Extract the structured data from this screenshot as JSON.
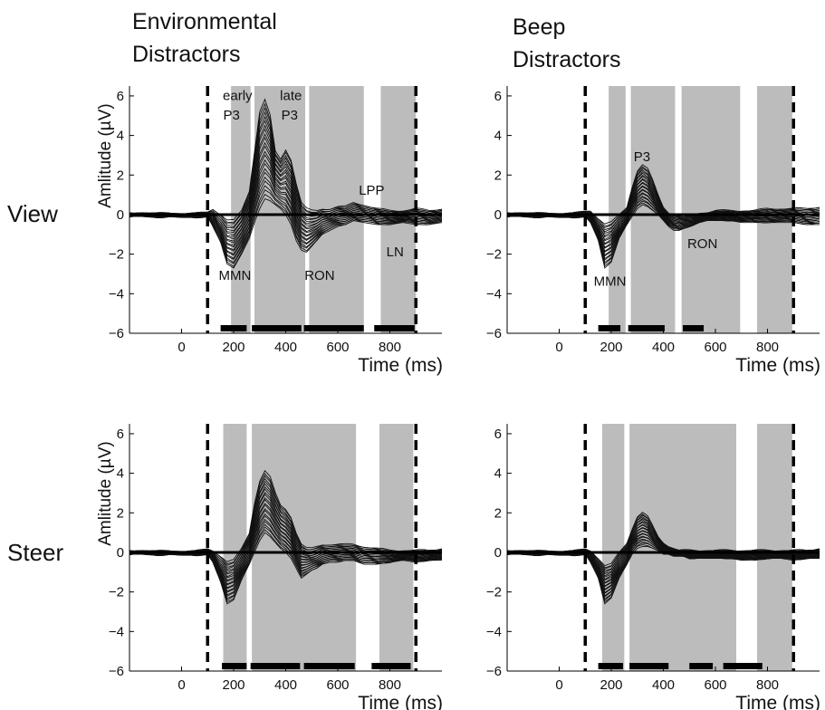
{
  "columns": [
    {
      "title_line1": "Environmental",
      "title_line2": "Distractors"
    },
    {
      "title_line1": "Beep",
      "title_line2": "Distractors"
    }
  ],
  "rows": [
    "View",
    "Steer"
  ],
  "chart_data": [
    {
      "type": "line",
      "panel": "View - Environmental Distractors",
      "xlabel": "Time (ms)",
      "ylabel": "Amlitude (µV)",
      "xlim": [
        -200,
        1000
      ],
      "ylim": [
        -6,
        6.5
      ],
      "xticks": [
        0,
        200,
        400,
        600,
        800
      ],
      "yticks": [
        -6,
        -4,
        -2,
        0,
        2,
        4,
        6
      ],
      "stimulus_markers": [
        100,
        900
      ],
      "shaded_windows": [
        [
          190,
          265
        ],
        [
          280,
          475
        ],
        [
          490,
          700
        ],
        [
          765,
          900
        ]
      ],
      "significance_bars": [
        [
          150,
          250
        ],
        [
          270,
          460
        ],
        [
          470,
          700
        ],
        [
          740,
          895
        ]
      ],
      "envelope": {
        "x": [
          -200,
          -150,
          -100,
          -50,
          0,
          50,
          100,
          120,
          150,
          175,
          200,
          230,
          260,
          280,
          300,
          320,
          340,
          360,
          380,
          400,
          420,
          440,
          460,
          480,
          500,
          520,
          540,
          570,
          600,
          630,
          660,
          700,
          750,
          800,
          850,
          900,
          950,
          1000
        ],
        "upper": [
          0.1,
          0.1,
          0.05,
          0.1,
          0.05,
          0.05,
          0.15,
          0.3,
          0.0,
          -0.3,
          -0.3,
          0.2,
          1.2,
          3.2,
          5.2,
          5.8,
          5.0,
          3.2,
          2.8,
          3.3,
          2.8,
          1.6,
          0.6,
          0.3,
          0.2,
          0.2,
          0.3,
          0.3,
          0.4,
          0.4,
          0.6,
          0.5,
          0.3,
          0.2,
          0.2,
          0.3,
          0.2,
          0.3
        ],
        "lower": [
          -0.1,
          -0.1,
          -0.15,
          -0.1,
          -0.15,
          -0.15,
          -0.1,
          -0.6,
          -1.4,
          -2.5,
          -2.7,
          -2.0,
          -1.2,
          -0.4,
          0.3,
          0.8,
          0.7,
          0.5,
          0.3,
          0.0,
          -0.5,
          -1.3,
          -1.8,
          -1.9,
          -1.6,
          -1.3,
          -1.0,
          -0.8,
          -0.6,
          -0.5,
          -0.3,
          -0.4,
          -0.5,
          -0.5,
          -0.4,
          -0.5,
          -0.5,
          -0.4
        ]
      },
      "annotations": [
        {
          "text": "early",
          "x": 215,
          "y": 5.8
        },
        {
          "text": "P3",
          "x": 192,
          "y": 4.8
        },
        {
          "text": "late",
          "x": 420,
          "y": 5.8
        },
        {
          "text": "P3",
          "x": 415,
          "y": 4.8
        },
        {
          "text": "LPP",
          "x": 730,
          "y": 1.0
        },
        {
          "text": "MMN",
          "x": 205,
          "y": -3.3
        },
        {
          "text": "RON",
          "x": 530,
          "y": -3.3
        },
        {
          "text": "LN",
          "x": 820,
          "y": -2.1
        }
      ]
    },
    {
      "type": "line",
      "panel": "View - Beep Distractors",
      "xlabel": "Time (ms)",
      "ylabel": "",
      "xlim": [
        -200,
        1000
      ],
      "ylim": [
        -6,
        6.5
      ],
      "xticks": [
        0,
        200,
        400,
        600,
        800
      ],
      "yticks": [
        -6,
        -4,
        -2,
        0,
        2,
        4,
        6
      ],
      "stimulus_markers": [
        100,
        900
      ],
      "shaded_windows": [
        [
          190,
          255
        ],
        [
          275,
          445
        ],
        [
          470,
          695
        ],
        [
          760,
          895
        ]
      ],
      "significance_bars": [
        [
          150,
          235
        ],
        [
          265,
          405
        ],
        [
          475,
          555
        ]
      ],
      "envelope": {
        "x": [
          -200,
          -150,
          -100,
          -50,
          0,
          50,
          100,
          120,
          150,
          175,
          200,
          230,
          260,
          280,
          300,
          320,
          340,
          360,
          380,
          400,
          420,
          440,
          460,
          480,
          500,
          520,
          540,
          570,
          600,
          630,
          660,
          700,
          750,
          800,
          850,
          900,
          950,
          1000
        ],
        "upper": [
          0.1,
          0.1,
          0.05,
          0.1,
          0.05,
          0.05,
          0.2,
          0.2,
          -0.2,
          -0.5,
          -0.4,
          0.0,
          0.4,
          1.4,
          2.2,
          2.5,
          2.3,
          1.7,
          1.0,
          0.4,
          0.1,
          0.0,
          -0.1,
          -0.1,
          0.0,
          0.0,
          0.1,
          0.1,
          0.2,
          0.2,
          0.2,
          0.2,
          0.2,
          0.3,
          0.3,
          0.3,
          0.3,
          0.4
        ],
        "lower": [
          -0.1,
          -0.1,
          -0.15,
          -0.1,
          -0.15,
          -0.15,
          -0.1,
          -0.4,
          -1.3,
          -2.7,
          -2.4,
          -1.2,
          -0.5,
          -0.1,
          0.3,
          0.5,
          0.4,
          0.2,
          0.0,
          -0.3,
          -0.6,
          -0.8,
          -0.8,
          -0.7,
          -0.6,
          -0.5,
          -0.4,
          -0.3,
          -0.3,
          -0.3,
          -0.3,
          -0.4,
          -0.4,
          -0.4,
          -0.4,
          -0.4,
          -0.5,
          -0.5
        ]
      },
      "annotations": [
        {
          "text": "P3",
          "x": 318,
          "y": 2.7
        },
        {
          "text": "MMN",
          "x": 195,
          "y": -3.6
        },
        {
          "text": "RON",
          "x": 550,
          "y": -1.7
        }
      ]
    },
    {
      "type": "line",
      "panel": "Steer - Environmental Distractors",
      "xlabel": "Time (ms)",
      "ylabel": "Amlitude (µV)",
      "xlim": [
        -200,
        1000
      ],
      "ylim": [
        -6,
        6.5
      ],
      "xticks": [
        0,
        200,
        400,
        600,
        800
      ],
      "yticks": [
        -6,
        -4,
        -2,
        0,
        2,
        4,
        6
      ],
      "stimulus_markers": [
        100,
        900
      ],
      "shaded_windows": [
        [
          160,
          250
        ],
        [
          270,
          670
        ],
        [
          760,
          890
        ]
      ],
      "significance_bars": [
        [
          155,
          250
        ],
        [
          265,
          455
        ],
        [
          470,
          665
        ],
        [
          730,
          880
        ]
      ],
      "envelope": {
        "x": [
          -200,
          -150,
          -100,
          -50,
          0,
          50,
          100,
          120,
          150,
          175,
          200,
          230,
          260,
          280,
          300,
          320,
          340,
          360,
          380,
          400,
          420,
          440,
          460,
          480,
          500,
          520,
          540,
          570,
          600,
          630,
          660,
          700,
          750,
          800,
          850,
          900,
          950,
          1000
        ],
        "upper": [
          0.1,
          0.1,
          0.05,
          0.1,
          0.05,
          0.05,
          0.2,
          0.1,
          -0.2,
          -0.5,
          -0.4,
          0.2,
          1.0,
          2.5,
          3.6,
          4.1,
          3.8,
          3.0,
          2.4,
          2.2,
          1.8,
          1.0,
          0.4,
          0.2,
          0.2,
          0.3,
          0.4,
          0.4,
          0.4,
          0.4,
          0.4,
          0.3,
          0.2,
          0.1,
          0.1,
          0.1,
          0.1,
          0.2
        ],
        "lower": [
          -0.1,
          -0.1,
          -0.15,
          -0.1,
          -0.15,
          -0.15,
          -0.1,
          -0.5,
          -1.5,
          -2.6,
          -2.4,
          -1.4,
          -0.6,
          0.0,
          0.6,
          1.0,
          0.8,
          0.5,
          0.2,
          0.0,
          -0.3,
          -0.8,
          -1.3,
          -1.1,
          -0.9,
          -0.8,
          -0.6,
          -0.5,
          -0.5,
          -0.4,
          -0.4,
          -0.6,
          -0.6,
          -0.5,
          -0.4,
          -0.5,
          -0.4,
          -0.4
        ]
      },
      "annotations": []
    },
    {
      "type": "line",
      "panel": "Steer - Beep Distractors",
      "xlabel": "Time (ms)",
      "ylabel": "",
      "xlim": [
        -200,
        1000
      ],
      "ylim": [
        -6,
        6.5
      ],
      "xticks": [
        0,
        200,
        400,
        600,
        800
      ],
      "yticks": [
        -6,
        -4,
        -2,
        0,
        2,
        4,
        6
      ],
      "stimulus_markers": [
        100,
        900
      ],
      "shaded_windows": [
        [
          165,
          250
        ],
        [
          270,
          680
        ],
        [
          760,
          895
        ]
      ],
      "significance_bars": [
        [
          150,
          245
        ],
        [
          270,
          420
        ],
        [
          500,
          590
        ],
        [
          630,
          780
        ]
      ],
      "envelope": {
        "x": [
          -200,
          -150,
          -100,
          -50,
          0,
          50,
          100,
          120,
          150,
          175,
          200,
          230,
          260,
          280,
          300,
          320,
          340,
          360,
          380,
          400,
          420,
          440,
          460,
          480,
          500,
          520,
          540,
          570,
          600,
          630,
          660,
          700,
          750,
          800,
          850,
          900,
          950,
          1000
        ],
        "upper": [
          0.1,
          0.1,
          0.05,
          0.1,
          0.05,
          0.05,
          0.2,
          0.1,
          -0.3,
          -0.7,
          -0.6,
          0.0,
          0.5,
          1.2,
          1.8,
          2.0,
          1.8,
          1.3,
          0.8,
          0.5,
          0.3,
          0.2,
          0.1,
          0.1,
          0.1,
          0.1,
          0.1,
          0.1,
          0.1,
          0.1,
          0.1,
          0.1,
          0.1,
          0.1,
          0.1,
          0.1,
          0.1,
          0.2
        ],
        "lower": [
          -0.1,
          -0.1,
          -0.15,
          -0.1,
          -0.15,
          -0.15,
          -0.1,
          -0.5,
          -1.3,
          -2.6,
          -2.3,
          -1.3,
          -0.6,
          -0.1,
          0.2,
          0.3,
          0.3,
          0.2,
          0.1,
          -0.1,
          -0.1,
          -0.2,
          -0.2,
          -0.2,
          -0.3,
          -0.3,
          -0.3,
          -0.3,
          -0.3,
          -0.3,
          -0.3,
          -0.4,
          -0.4,
          -0.3,
          -0.3,
          -0.4,
          -0.3,
          -0.3
        ]
      },
      "annotations": []
    }
  ]
}
